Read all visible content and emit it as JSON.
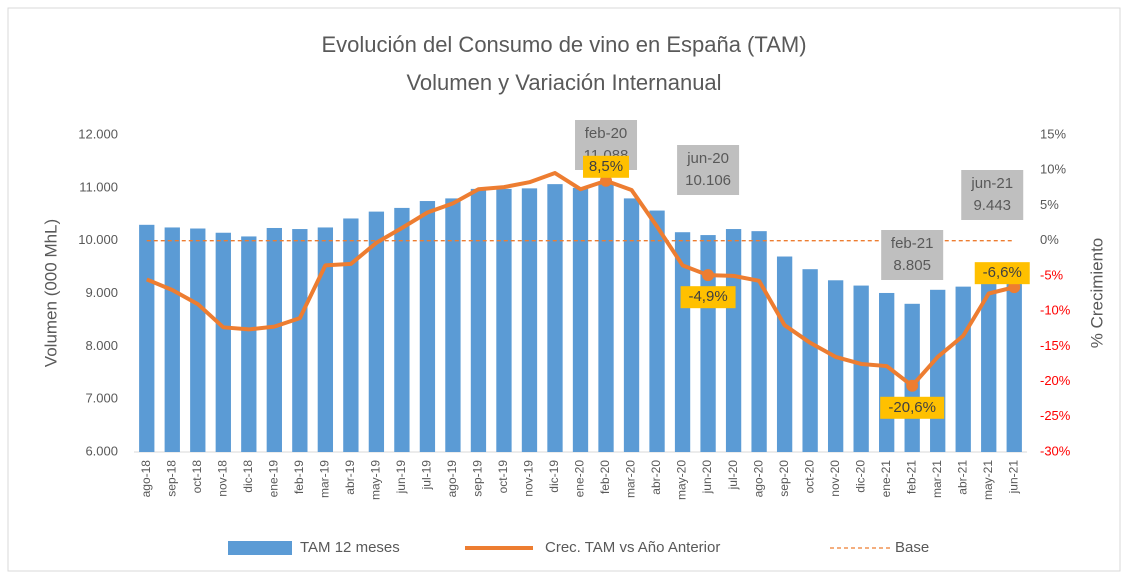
{
  "chart_data": {
    "type": "bar_line",
    "title": "Evolución del Consumo de vino en España (TAM)",
    "subtitle": "Volumen y Variación Internanual",
    "y_label": "Volumen (000 MhL)",
    "y2_label": "% Crecimiento",
    "categories": [
      "ago-18",
      "sep-18",
      "oct-18",
      "nov-18",
      "dic-18",
      "ene-19",
      "feb-19",
      "mar-19",
      "abr-19",
      "may-19",
      "jun-19",
      "jul-19",
      "ago-19",
      "sep-19",
      "oct-19",
      "nov-19",
      "dic-19",
      "ene-20",
      "feb-20",
      "mar-20",
      "abr-20",
      "may-20",
      "jun-20",
      "jul-20",
      "ago-20",
      "sep-20",
      "oct-20",
      "nov-20",
      "dic-20",
      "ene-21",
      "feb-21",
      "mar-21",
      "abr-21",
      "may-21",
      "jun-21"
    ],
    "series": [
      {
        "name": "TAM 12 meses",
        "type": "bar",
        "color": "#5b9bd5",
        "values": [
          10300,
          10250,
          10230,
          10150,
          10080,
          10240,
          10220,
          10250,
          10420,
          10550,
          10620,
          10750,
          10800,
          10980,
          10980,
          10990,
          11070,
          11000,
          11088,
          10800,
          10570,
          10160,
          10106,
          10220,
          10180,
          9700,
          9460,
          9250,
          9150,
          9010,
          8805,
          9070,
          9130,
          9250,
          9443
        ],
        "value_labels": [
          null,
          null,
          null,
          null,
          null,
          null,
          null,
          null,
          null,
          null,
          null,
          null,
          null,
          null,
          null,
          null,
          null,
          null,
          "11.088",
          null,
          null,
          null,
          "10.106",
          null,
          null,
          null,
          null,
          null,
          null,
          null,
          "8.805",
          null,
          null,
          null,
          "9.443"
        ]
      },
      {
        "name": "Crec. TAM vs Año Anterior",
        "type": "line",
        "axis": "y2",
        "color": "#ed7d31",
        "values": [
          -5.5,
          -7,
          -9,
          -12.3,
          -12.6,
          -12.2,
          -11,
          -3.5,
          -3.3,
          -0.3,
          1.8,
          4,
          5.3,
          7.3,
          7.6,
          8.3,
          9.6,
          7.3,
          8.5,
          7.2,
          2,
          -3.5,
          -4.9,
          -5,
          -5.7,
          -12,
          -14.5,
          -16.5,
          -17.5,
          -17.8,
          -20.6,
          -16.5,
          -13.5,
          -7.5,
          -6.6
        ],
        "value_labels": [
          null,
          null,
          null,
          null,
          null,
          null,
          null,
          null,
          null,
          null,
          null,
          null,
          null,
          null,
          null,
          null,
          null,
          null,
          "8,5%",
          null,
          null,
          null,
          "-4,9%",
          null,
          null,
          null,
          null,
          null,
          null,
          null,
          "-20,6%",
          null,
          null,
          null,
          "-6,6%"
        ]
      },
      {
        "name": "Base",
        "type": "dashed",
        "axis": "y2",
        "color": "#ed7d31",
        "values": [
          0,
          0,
          0,
          0,
          0,
          0,
          0,
          0,
          0,
          0,
          0,
          0,
          0,
          0,
          0,
          0,
          0,
          0,
          0,
          0,
          0,
          0,
          0,
          0,
          0,
          0,
          0,
          0,
          0,
          0,
          0,
          0,
          0,
          0,
          0
        ]
      }
    ],
    "ylim": [
      6000,
      12000
    ],
    "yticks": [
      {
        "value": 6000,
        "label": "6.000"
      },
      {
        "value": 7000,
        "label": "7.000"
      },
      {
        "value": 8000,
        "label": "8.000"
      },
      {
        "value": 9000,
        "label": "9.000"
      },
      {
        "value": 10000,
        "label": "10.000"
      },
      {
        "value": 11000,
        "label": "11.000"
      },
      {
        "value": 12000,
        "label": "12.000"
      }
    ],
    "y2lim": [
      -30,
      15
    ],
    "y2ticks": [
      {
        "value": -30,
        "label": "-30%"
      },
      {
        "value": -25,
        "label": "-25%"
      },
      {
        "value": -20,
        "label": "-20%"
      },
      {
        "value": -15,
        "label": "-15%"
      },
      {
        "value": -10,
        "label": "-10%"
      },
      {
        "value": -5,
        "label": "-5%"
      },
      {
        "value": 0,
        "label": "0%"
      },
      {
        "value": 5,
        "label": "5%"
      },
      {
        "value": 10,
        "label": "10%"
      },
      {
        "value": 15,
        "label": "15%"
      }
    ],
    "legend": "bottom"
  }
}
